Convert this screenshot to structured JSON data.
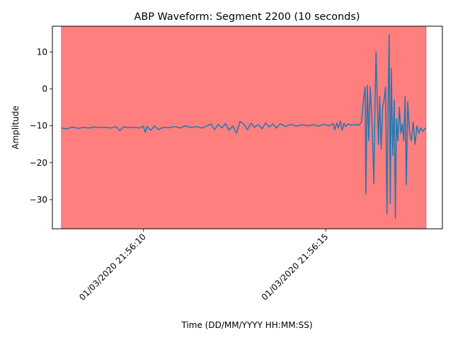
{
  "chart_data": {
    "type": "line",
    "title": "ABP Waveform: Segment 2200 (10 seconds)",
    "xlabel": "Time (DD/MM/YYYY HH:MM:SS)",
    "ylabel": "Amplitude",
    "x_ticks": [
      {
        "value": 10,
        "label": "01/03/2020 21:56:10"
      },
      {
        "value": 15,
        "label": "01/03/2020 21:56:15"
      }
    ],
    "y_ticks": [
      -30,
      -20,
      -10,
      0,
      10
    ],
    "xlim": [
      7.5,
      18.2
    ],
    "ylim": [
      -37.9,
      17.0
    ],
    "grid": false,
    "highlight_region": {
      "x_start": 7.75,
      "x_end": 17.75,
      "color": "#ff7f7f"
    },
    "series": [
      {
        "color": "#1f77b4",
        "x_unit": "seconds after 21:56:00",
        "points": [
          [
            7.75,
            -10.6
          ],
          [
            7.9,
            -10.8
          ],
          [
            8.05,
            -10.3
          ],
          [
            8.2,
            -10.7
          ],
          [
            8.35,
            -10.4
          ],
          [
            8.5,
            -10.6
          ],
          [
            8.65,
            -10.3
          ],
          [
            8.8,
            -10.5
          ],
          [
            8.95,
            -10.4
          ],
          [
            9.1,
            -10.6
          ],
          [
            9.25,
            -10.2
          ],
          [
            9.35,
            -11.3
          ],
          [
            9.45,
            -10.3
          ],
          [
            9.6,
            -10.5
          ],
          [
            9.75,
            -10.4
          ],
          [
            9.9,
            -10.6
          ],
          [
            10.0,
            -10.1
          ],
          [
            10.05,
            -11.8
          ],
          [
            10.1,
            -10.2
          ],
          [
            10.2,
            -11.2
          ],
          [
            10.3,
            -10.0
          ],
          [
            10.4,
            -11.0
          ],
          [
            10.55,
            -10.4
          ],
          [
            10.7,
            -10.5
          ],
          [
            10.85,
            -10.2
          ],
          [
            11.0,
            -10.6
          ],
          [
            11.15,
            -10.0
          ],
          [
            11.3,
            -10.4
          ],
          [
            11.45,
            -10.2
          ],
          [
            11.6,
            -10.6
          ],
          [
            11.75,
            -10.0
          ],
          [
            11.85,
            -9.5
          ],
          [
            11.95,
            -11.0
          ],
          [
            12.05,
            -9.6
          ],
          [
            12.15,
            -10.6
          ],
          [
            12.25,
            -9.4
          ],
          [
            12.35,
            -11.2
          ],
          [
            12.45,
            -10.0
          ],
          [
            12.55,
            -12.0
          ],
          [
            12.65,
            -8.8
          ],
          [
            12.75,
            -9.5
          ],
          [
            12.85,
            -11.0
          ],
          [
            12.95,
            -9.3
          ],
          [
            13.05,
            -10.4
          ],
          [
            13.15,
            -9.6
          ],
          [
            13.25,
            -10.8
          ],
          [
            13.35,
            -9.2
          ],
          [
            13.45,
            -10.3
          ],
          [
            13.55,
            -9.5
          ],
          [
            13.65,
            -10.6
          ],
          [
            13.75,
            -9.4
          ],
          [
            13.9,
            -10.2
          ],
          [
            14.05,
            -9.6
          ],
          [
            14.2,
            -10.1
          ],
          [
            14.35,
            -9.7
          ],
          [
            14.5,
            -10.0
          ],
          [
            14.65,
            -9.7
          ],
          [
            14.8,
            -10.1
          ],
          [
            14.95,
            -9.6
          ],
          [
            15.1,
            -10.0
          ],
          [
            15.2,
            -9.4
          ],
          [
            15.25,
            -11.0
          ],
          [
            15.3,
            -9.2
          ],
          [
            15.35,
            -10.6
          ],
          [
            15.4,
            -8.7
          ],
          [
            15.45,
            -11.2
          ],
          [
            15.5,
            -9.3
          ],
          [
            15.55,
            -10.2
          ],
          [
            15.6,
            -9.5
          ],
          [
            15.7,
            -9.8
          ],
          [
            15.8,
            -9.6
          ],
          [
            15.9,
            -9.9
          ],
          [
            15.98,
            -9.0
          ],
          [
            16.03,
            -3.5
          ],
          [
            16.08,
            0.5
          ],
          [
            16.1,
            -28.5
          ],
          [
            16.14,
            1.0
          ],
          [
            16.18,
            -14.0
          ],
          [
            16.22,
            0.5
          ],
          [
            16.27,
            -9.0
          ],
          [
            16.32,
            -25.7
          ],
          [
            16.35,
            -5.0
          ],
          [
            16.38,
            10.0
          ],
          [
            16.41,
            -2.5
          ],
          [
            16.45,
            -15.0
          ],
          [
            16.48,
            -2.0
          ],
          [
            16.52,
            -16.3
          ],
          [
            16.56,
            -5.0
          ],
          [
            16.6,
            -3.0
          ],
          [
            16.64,
            0.5
          ],
          [
            16.68,
            -33.9
          ],
          [
            16.71,
            -5.0
          ],
          [
            16.74,
            14.6
          ],
          [
            16.77,
            -31.0
          ],
          [
            16.8,
            5.5
          ],
          [
            16.84,
            -18.0
          ],
          [
            16.88,
            -3.0
          ],
          [
            16.91,
            -35.0
          ],
          [
            16.94,
            -8.0
          ],
          [
            16.98,
            -14.0
          ],
          [
            17.02,
            -5.0
          ],
          [
            17.06,
            -12.0
          ],
          [
            17.1,
            -9.5
          ],
          [
            17.14,
            -14.0
          ],
          [
            17.18,
            -2.0
          ],
          [
            17.21,
            -26.0
          ],
          [
            17.25,
            -3.5
          ],
          [
            17.3,
            -12.0
          ],
          [
            17.35,
            -14.0
          ],
          [
            17.4,
            -9.0
          ],
          [
            17.45,
            -15.0
          ],
          [
            17.5,
            -10.0
          ],
          [
            17.55,
            -12.0
          ],
          [
            17.6,
            -10.5
          ],
          [
            17.66,
            -11.5
          ],
          [
            17.75,
            -10.5
          ]
        ]
      }
    ]
  }
}
